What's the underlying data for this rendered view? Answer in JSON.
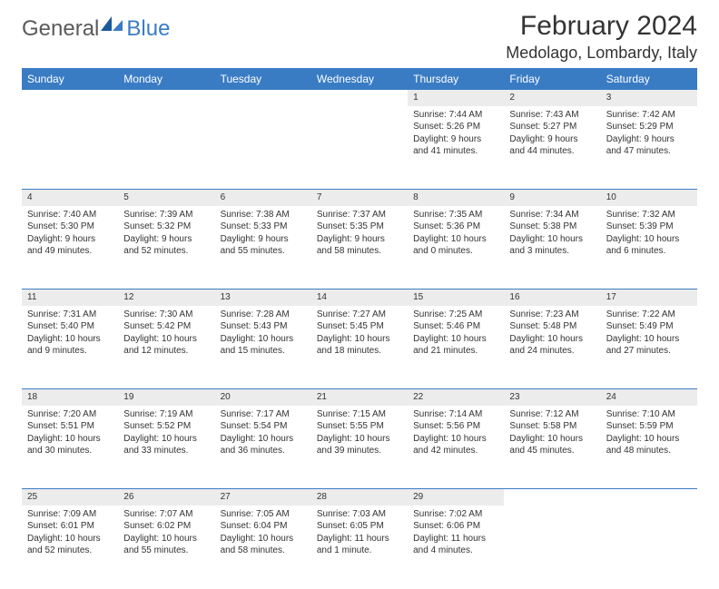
{
  "logo": {
    "text1": "General",
    "text2": "Blue"
  },
  "title": "February 2024",
  "location": "Medolago, Lombardy, Italy",
  "colors": {
    "header_bg": "#3a7cc4",
    "daynum_bg": "#ececec",
    "text": "#333333",
    "logo_gray": "#5a5a5a",
    "logo_blue": "#3a7cc4"
  },
  "weekdays": [
    "Sunday",
    "Monday",
    "Tuesday",
    "Wednesday",
    "Thursday",
    "Friday",
    "Saturday"
  ],
  "weeks": [
    [
      null,
      null,
      null,
      null,
      {
        "n": "1",
        "sr": "7:44 AM",
        "ss": "5:26 PM",
        "dl": "9 hours and 41 minutes."
      },
      {
        "n": "2",
        "sr": "7:43 AM",
        "ss": "5:27 PM",
        "dl": "9 hours and 44 minutes."
      },
      {
        "n": "3",
        "sr": "7:42 AM",
        "ss": "5:29 PM",
        "dl": "9 hours and 47 minutes."
      }
    ],
    [
      {
        "n": "4",
        "sr": "7:40 AM",
        "ss": "5:30 PM",
        "dl": "9 hours and 49 minutes."
      },
      {
        "n": "5",
        "sr": "7:39 AM",
        "ss": "5:32 PM",
        "dl": "9 hours and 52 minutes."
      },
      {
        "n": "6",
        "sr": "7:38 AM",
        "ss": "5:33 PM",
        "dl": "9 hours and 55 minutes."
      },
      {
        "n": "7",
        "sr": "7:37 AM",
        "ss": "5:35 PM",
        "dl": "9 hours and 58 minutes."
      },
      {
        "n": "8",
        "sr": "7:35 AM",
        "ss": "5:36 PM",
        "dl": "10 hours and 0 minutes."
      },
      {
        "n": "9",
        "sr": "7:34 AM",
        "ss": "5:38 PM",
        "dl": "10 hours and 3 minutes."
      },
      {
        "n": "10",
        "sr": "7:32 AM",
        "ss": "5:39 PM",
        "dl": "10 hours and 6 minutes."
      }
    ],
    [
      {
        "n": "11",
        "sr": "7:31 AM",
        "ss": "5:40 PM",
        "dl": "10 hours and 9 minutes."
      },
      {
        "n": "12",
        "sr": "7:30 AM",
        "ss": "5:42 PM",
        "dl": "10 hours and 12 minutes."
      },
      {
        "n": "13",
        "sr": "7:28 AM",
        "ss": "5:43 PM",
        "dl": "10 hours and 15 minutes."
      },
      {
        "n": "14",
        "sr": "7:27 AM",
        "ss": "5:45 PM",
        "dl": "10 hours and 18 minutes."
      },
      {
        "n": "15",
        "sr": "7:25 AM",
        "ss": "5:46 PM",
        "dl": "10 hours and 21 minutes."
      },
      {
        "n": "16",
        "sr": "7:23 AM",
        "ss": "5:48 PM",
        "dl": "10 hours and 24 minutes."
      },
      {
        "n": "17",
        "sr": "7:22 AM",
        "ss": "5:49 PM",
        "dl": "10 hours and 27 minutes."
      }
    ],
    [
      {
        "n": "18",
        "sr": "7:20 AM",
        "ss": "5:51 PM",
        "dl": "10 hours and 30 minutes."
      },
      {
        "n": "19",
        "sr": "7:19 AM",
        "ss": "5:52 PM",
        "dl": "10 hours and 33 minutes."
      },
      {
        "n": "20",
        "sr": "7:17 AM",
        "ss": "5:54 PM",
        "dl": "10 hours and 36 minutes."
      },
      {
        "n": "21",
        "sr": "7:15 AM",
        "ss": "5:55 PM",
        "dl": "10 hours and 39 minutes."
      },
      {
        "n": "22",
        "sr": "7:14 AM",
        "ss": "5:56 PM",
        "dl": "10 hours and 42 minutes."
      },
      {
        "n": "23",
        "sr": "7:12 AM",
        "ss": "5:58 PM",
        "dl": "10 hours and 45 minutes."
      },
      {
        "n": "24",
        "sr": "7:10 AM",
        "ss": "5:59 PM",
        "dl": "10 hours and 48 minutes."
      }
    ],
    [
      {
        "n": "25",
        "sr": "7:09 AM",
        "ss": "6:01 PM",
        "dl": "10 hours and 52 minutes."
      },
      {
        "n": "26",
        "sr": "7:07 AM",
        "ss": "6:02 PM",
        "dl": "10 hours and 55 minutes."
      },
      {
        "n": "27",
        "sr": "7:05 AM",
        "ss": "6:04 PM",
        "dl": "10 hours and 58 minutes."
      },
      {
        "n": "28",
        "sr": "7:03 AM",
        "ss": "6:05 PM",
        "dl": "11 hours and 1 minute."
      },
      {
        "n": "29",
        "sr": "7:02 AM",
        "ss": "6:06 PM",
        "dl": "11 hours and 4 minutes."
      },
      null,
      null
    ]
  ],
  "labels": {
    "sunrise": "Sunrise:",
    "sunset": "Sunset:",
    "daylight": "Daylight:"
  }
}
